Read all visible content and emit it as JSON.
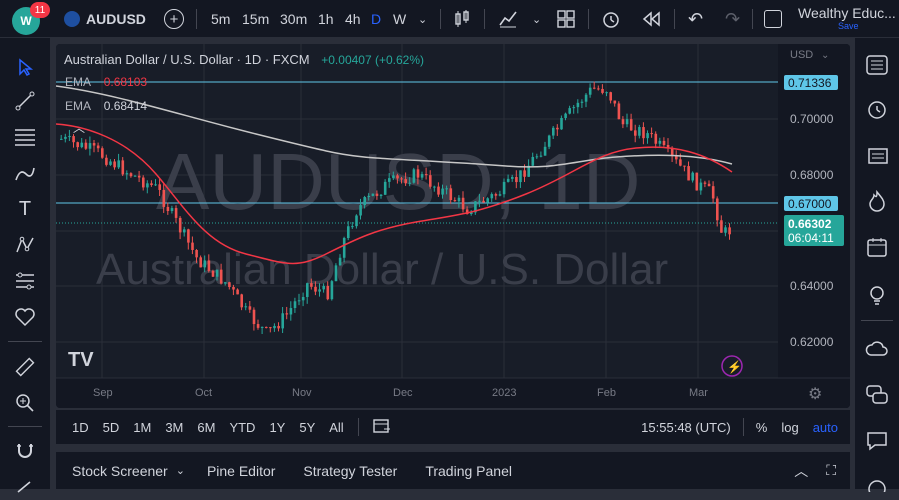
{
  "topbar": {
    "notification_count": "11",
    "symbol": "AUDUSD",
    "intervals": [
      "5m",
      "15m",
      "30m",
      "1h",
      "4h",
      "D",
      "W"
    ],
    "active_interval": "D",
    "account_name": "Wealthy Educ...",
    "save_label": "Save"
  },
  "legend": {
    "title": "Australian Dollar / U.S. Dollar · 1D · FXCM",
    "change": "+0.00407 (+0.62%)",
    "ema1_label": "EMA",
    "ema1_value": "0.68103",
    "ema2_label": "EMA",
    "ema2_value": "0.68414"
  },
  "watermark": {
    "symbol": "AUDUSD, 1D",
    "name": "Australian Dollar / U.S. Dollar"
  },
  "price_axis": {
    "currency": "USD",
    "ticks": [
      "0.70000",
      "0.68000",
      "0.64000",
      "0.62000"
    ],
    "line_top": "0.71336",
    "line_mid": "0.67000",
    "last_price": "0.66302",
    "countdown": "06:04:11"
  },
  "time_axis": {
    "labels": [
      "Sep",
      "Oct",
      "Nov",
      "Dec",
      "2023",
      "Feb",
      "Mar"
    ]
  },
  "range_bar": {
    "ranges": [
      "1D",
      "5D",
      "1M",
      "3M",
      "6M",
      "YTD",
      "1Y",
      "5Y",
      "All"
    ],
    "clock": "15:55:48 (UTC)",
    "percent_label": "%",
    "log_label": "log",
    "auto_label": "auto"
  },
  "bottom_panel": {
    "tabs": [
      "Stock Screener",
      "Pine Editor",
      "Strategy Tester",
      "Trading Panel"
    ]
  },
  "colors": {
    "up": "#26a69a",
    "down": "#ef5350",
    "ema_fast": "#f23645",
    "ema_slow": "#c7c7c7",
    "level_line": "#22ab94",
    "accent": "#2962ff"
  }
}
